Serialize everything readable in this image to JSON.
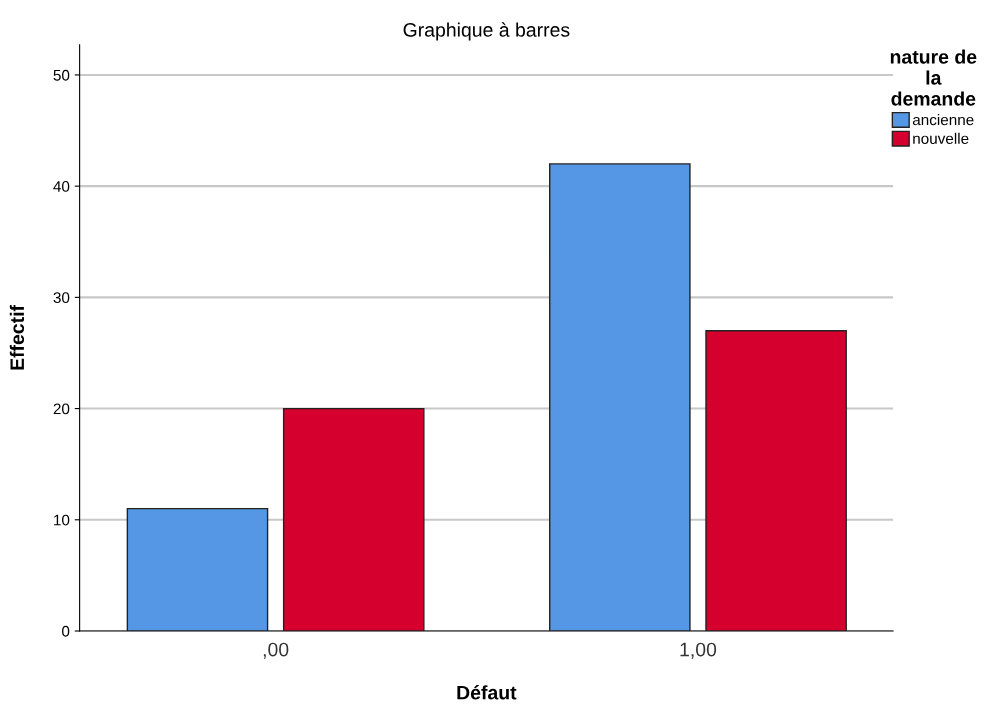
{
  "chart_data": {
    "type": "bar",
    "title": "Graphique à barres",
    "xlabel": "Défaut",
    "ylabel": "Effectif",
    "legend_title": "nature de\nla\ndemande",
    "categories": [
      ",00",
      "1,00"
    ],
    "series": [
      {
        "name": "ancienne",
        "color": "#5597e5",
        "values": [
          11,
          42
        ]
      },
      {
        "name": "nouvelle",
        "color": "#d5002e",
        "values": [
          20,
          27
        ]
      }
    ],
    "ylim": [
      0,
      52.7
    ],
    "yticks": [
      0,
      10,
      20,
      30,
      40,
      50
    ],
    "grid": "y",
    "legend": "top right"
  }
}
